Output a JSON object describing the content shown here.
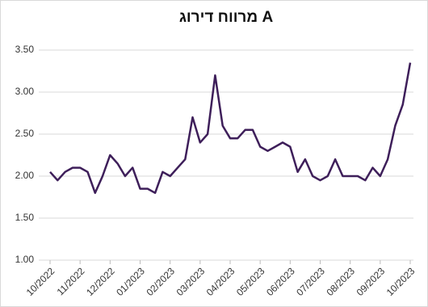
{
  "chart_data": {
    "type": "line",
    "title": "מרווח דירוג A",
    "x": [
      "10/2022",
      null,
      null,
      null,
      "11/2022",
      null,
      null,
      null,
      "12/2022",
      null,
      null,
      null,
      "01/2023",
      null,
      null,
      null,
      "02/2023",
      null,
      null,
      null,
      "03/2023",
      null,
      null,
      null,
      "04/2023",
      null,
      null,
      null,
      "05/2023",
      null,
      null,
      null,
      "06/2023",
      null,
      null,
      null,
      "07/2023",
      null,
      null,
      null,
      "08/2023",
      null,
      null,
      null,
      "09/2023",
      null,
      null,
      null,
      "10/2023"
    ],
    "series": [
      {
        "color": "#3e1f5a",
        "values": [
          2.05,
          1.95,
          2.05,
          2.1,
          2.1,
          2.05,
          1.8,
          2.0,
          2.25,
          2.15,
          2.0,
          2.1,
          1.85,
          1.85,
          1.8,
          2.05,
          2.0,
          2.1,
          2.2,
          2.7,
          2.4,
          2.5,
          3.2,
          2.6,
          2.45,
          2.45,
          2.55,
          2.55,
          2.35,
          2.3,
          2.35,
          2.4,
          2.35,
          2.05,
          2.2,
          2.0,
          1.95,
          2.0,
          2.2,
          2.0,
          2.0,
          2.0,
          1.95,
          2.1,
          2.0,
          2.2,
          2.6,
          2.85,
          3.35
        ]
      }
    ],
    "ylim": [
      1.0,
      3.5
    ],
    "yticks": [
      {
        "value": 1.0,
        "label": "1.00"
      },
      {
        "value": 1.5,
        "label": "1.50"
      },
      {
        "value": 2.0,
        "label": "2.00"
      },
      {
        "value": 2.5,
        "label": "2.50"
      },
      {
        "value": 3.0,
        "label": "3.00"
      },
      {
        "value": 3.5,
        "label": "3.50"
      }
    ],
    "grid": true
  }
}
